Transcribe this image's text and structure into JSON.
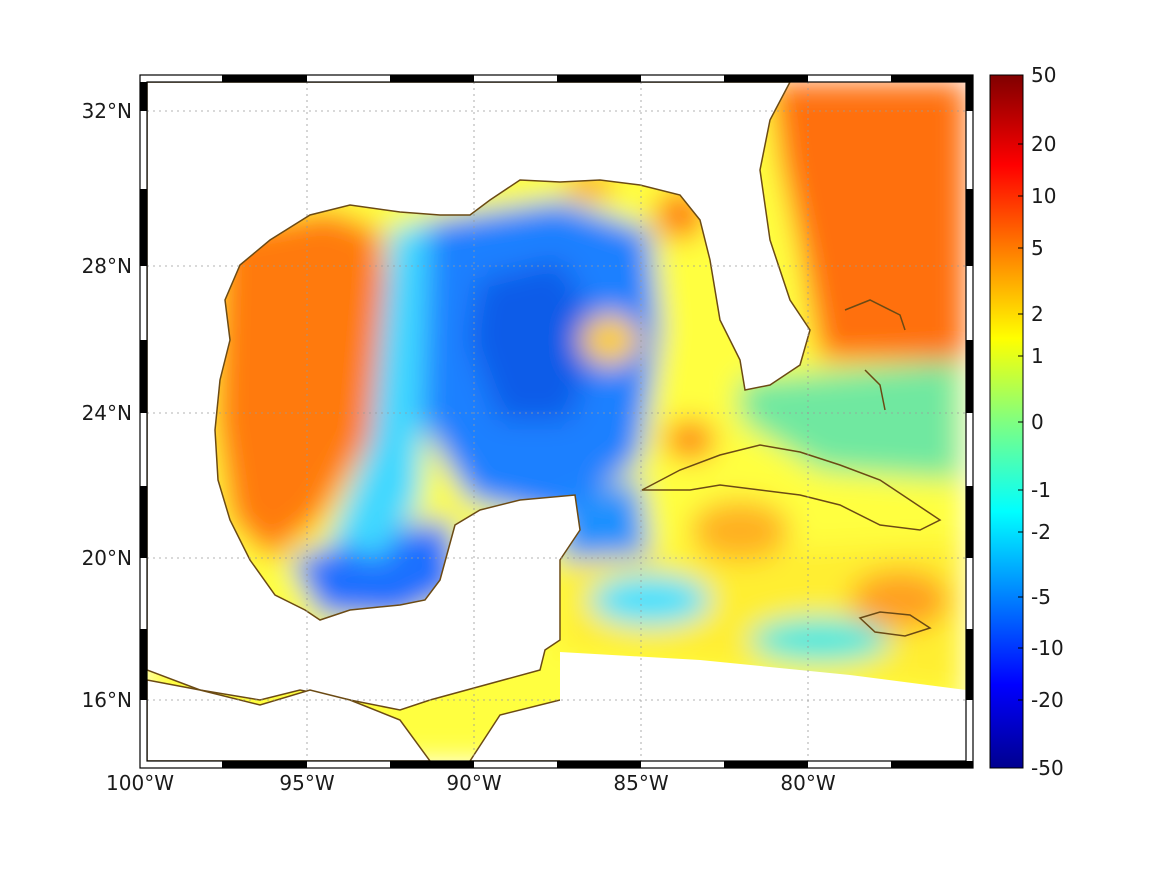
{
  "map": {
    "lat_labels": [
      "32°N",
      "28°N",
      "24°N",
      "20°N",
      "16°N"
    ],
    "lon_labels": [
      "100°W",
      "95°W",
      "90°W",
      "85°W",
      "80°W"
    ],
    "land_color": "#ffffff",
    "coast_color": "#6b4a14",
    "grid": "dotted"
  },
  "colorbar": {
    "tick_labels": [
      "50",
      "20",
      "10",
      "5",
      "2",
      "1",
      "0",
      "-1",
      "-2",
      "-5",
      "-10",
      "-20",
      "-50"
    ],
    "colormap": "jet",
    "range": [
      -50,
      50
    ],
    "scale": "symmetric-log"
  }
}
